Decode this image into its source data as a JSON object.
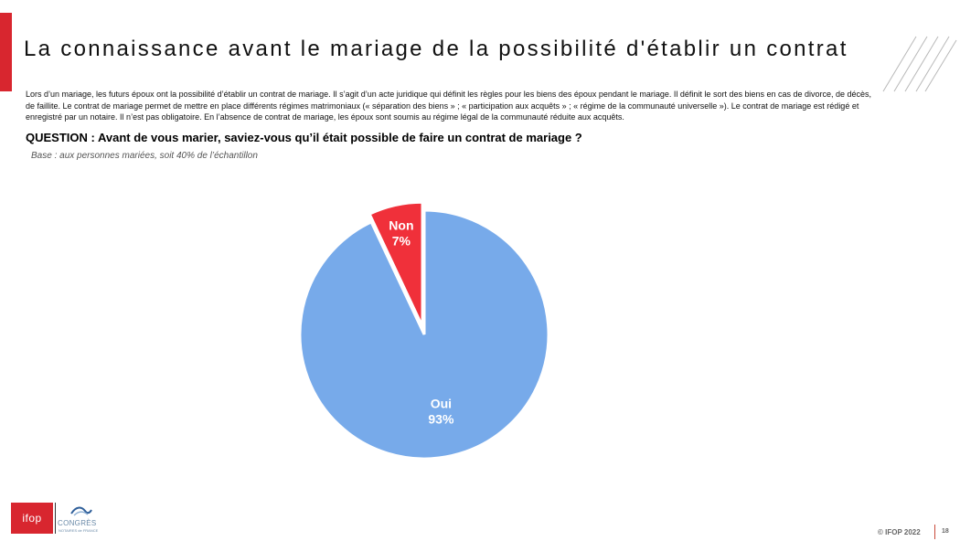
{
  "title": "La connaissance avant le mariage de la possibilité d'établir un contrat",
  "intro": "Lors d’un mariage, les futurs époux ont la possibilité d’établir un contrat de mariage. Il s’agit d’un acte juridique qui définit les règles pour les biens des époux pendant le mariage. Il définit le sort des biens en cas de divorce, de décès, de faillite. Le contrat de mariage permet de mettre en place différents régimes matrimoniaux (« séparation des biens » ; « participation aux acquêts » ; « régime de la communauté universelle »). Le contrat de mariage est rédigé et enregistré par un notaire. Il n’est pas obligatoire. En l’absence de contrat de mariage, les époux sont soumis au régime légal de la communauté réduite aux acquêts.",
  "question": "QUESTION : Avant de vous marier, saviez-vous qu’il était possible de faire un contrat de mariage ?",
  "base": "Base : aux personnes mariées, soit 40% de l’échantillon",
  "chart_data": {
    "type": "pie",
    "categories": [
      "Non",
      "Oui"
    ],
    "values": [
      7,
      93
    ],
    "value_labels": [
      "7%",
      "93%"
    ],
    "colors": [
      "#f0303a",
      "#77aaea"
    ],
    "exploded": [
      "Non"
    ],
    "start": "12 o'clock, clockwise from Oui"
  },
  "logos": {
    "ifop": "ifop",
    "congres": "CONGRÈS",
    "congres_sub": "NOTAIRES de FRANCE"
  },
  "footer": {
    "copyright": "© IFOP 2022",
    "page": "18"
  },
  "colors": {
    "accent": "#d8262f"
  }
}
